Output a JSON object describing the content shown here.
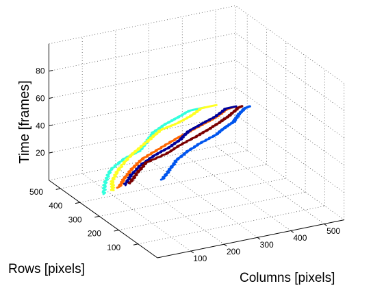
{
  "chart_data": {
    "type": "line",
    "projection": "3d",
    "grid": true,
    "xlabel": "Columns [pixels]",
    "ylabel": "Rows [pixels]",
    "zlabel": "Time [frames]",
    "xlim": [
      0,
      560
    ],
    "ylim": [
      0,
      560
    ],
    "zlim": [
      0,
      100
    ],
    "xticks": [
      "100",
      "200",
      "300",
      "400",
      "500"
    ],
    "yticks": [
      "100",
      "200",
      "300",
      "400",
      "500"
    ],
    "zticks": [
      "20",
      "40",
      "60",
      "80"
    ],
    "series": [
      {
        "color": "#33ffdd",
        "x": [
          82,
          82,
          89,
          112,
          131,
          135,
          133,
          142,
          145,
          154,
          173
        ],
        "y": [
          420,
          410,
          395,
          365,
          315,
          285,
          250,
          205,
          150,
          100,
          55
        ],
        "z": [
          0,
          10,
          20,
          30,
          40,
          50,
          60,
          70,
          80,
          90,
          96
        ]
      },
      {
        "color": "#ffff22",
        "x": [
          115,
          103,
          111,
          131,
          137,
          152,
          158,
          170,
          184,
          190,
          209
        ],
        "y": [
          430,
          410,
          390,
          370,
          330,
          295,
          255,
          195,
          145,
          100,
          55
        ],
        "z": [
          0,
          10,
          20,
          30,
          40,
          50,
          60,
          70,
          80,
          90,
          96
        ]
      },
      {
        "color": "#ff6600",
        "x": [
          140,
          140,
          147,
          157,
          184,
          211,
          225,
          238,
          241,
          245,
          248
        ],
        "y": [
          440,
          410,
          380,
          345,
          305,
          265,
          215,
          165,
          110,
          65,
          25
        ],
        "z": [
          0,
          10,
          20,
          30,
          40,
          50,
          60,
          70,
          80,
          90,
          96
        ]
      },
      {
        "color": "#000099",
        "x": [
          160,
          166,
          179,
          196,
          209,
          217,
          217,
          228,
          242,
          246,
          251
        ],
        "y": [
          445,
          420,
          390,
          350,
          300,
          255,
          215,
          165,
          115,
          70,
          25
        ],
        "z": [
          0,
          10,
          20,
          30,
          40,
          50,
          60,
          70,
          80,
          90,
          96
        ]
      },
      {
        "color": "#7a0000",
        "x": [
          178,
          187,
          196,
          228,
          241,
          266,
          275,
          279,
          278,
          277,
          264
        ],
        "y": [
          450,
          425,
          395,
          345,
          300,
          255,
          205,
          155,
          105,
          60,
          20
        ],
        "z": [
          0,
          10,
          20,
          30,
          40,
          50,
          60,
          70,
          80,
          90,
          96
        ]
      },
      {
        "color": "#0055ee",
        "x": [
          268,
          272,
          276,
          286,
          299,
          314,
          316,
          310,
          297,
          290,
          283
        ],
        "y": [
          435,
          405,
          375,
          335,
          290,
          240,
          195,
          140,
          95,
          50,
          10
        ],
        "z": [
          0,
          10,
          20,
          30,
          40,
          50,
          60,
          70,
          80,
          90,
          96
        ]
      }
    ]
  }
}
